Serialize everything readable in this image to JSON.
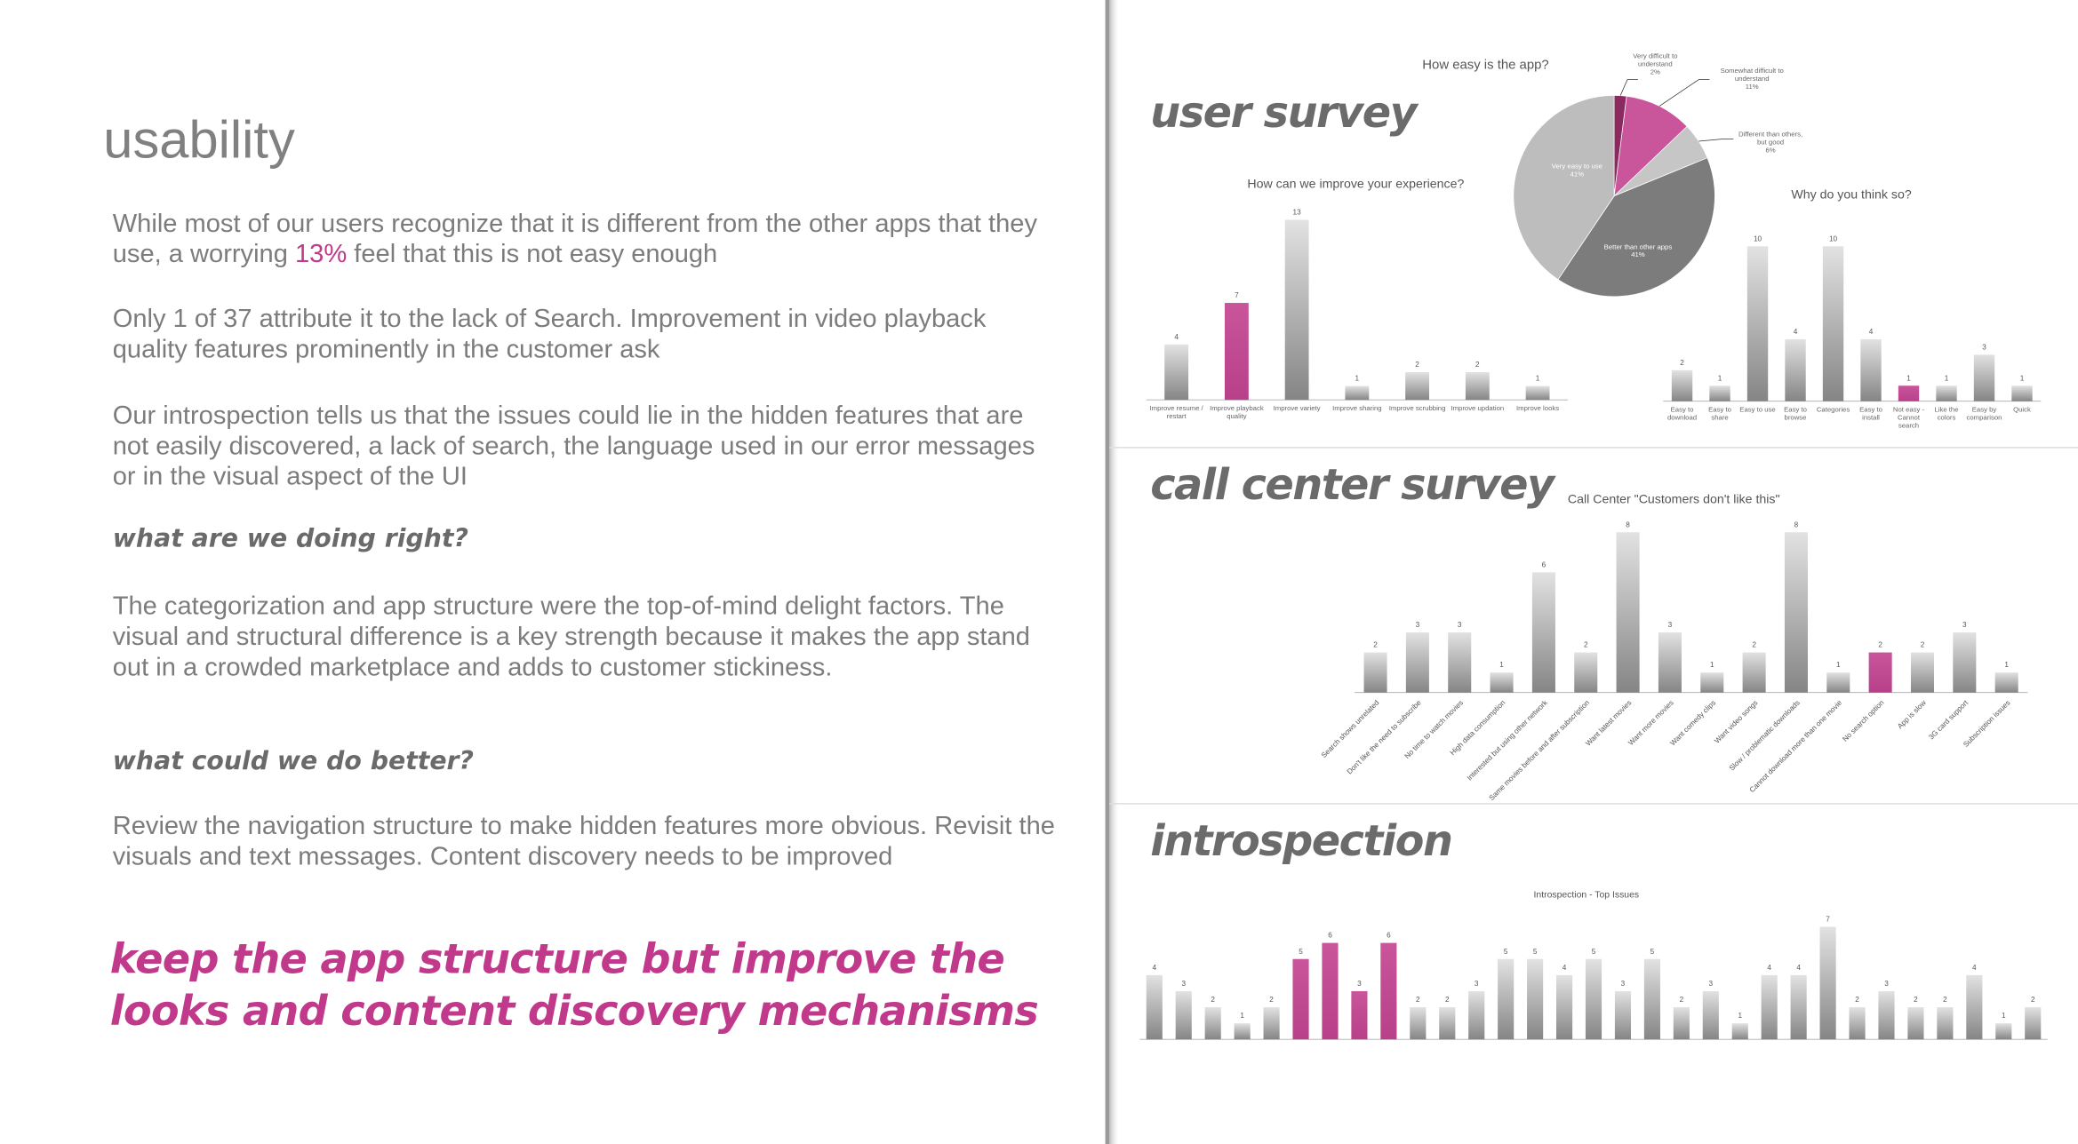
{
  "page": {
    "title": "usability",
    "paragraph1": [
      "While most of our users recognize that it is different from the other apps that they use, a worrying ",
      "13%",
      " feel that this is not easy enough"
    ],
    "paragraph2": "Only 1 of 37 attribute it to the lack of Search. Improvement in video playback quality features prominently in the customer ask",
    "paragraph3": "Our introspection tells us that the issues could lie in the hidden features that are not easily discovered, a lack of search, the language used in our error messages or in the visual aspect of the UI",
    "heading_right": "what are we doing right?",
    "paragraph4": "The categorization and app structure were the top-of-mind delight factors. The visual and structural difference is a key strength because it makes the app stand out in a crowded marketplace and adds to customer stickiness.",
    "heading_better": "what could we do better?",
    "paragraph5": "Review the navigation structure to make hidden features more obvious. Revisit the visuals and text messages. Content discovery needs to be improved",
    "conclusion": "keep the app structure but improve the looks and content discovery mechanisms",
    "section1": "user survey",
    "section2": "call center survey",
    "section3": "introspection"
  },
  "chart_data": [
    {
      "type": "bar",
      "title": "How can we improve your experience?",
      "categories": [
        "Improve resume / restart",
        "Improve playback quality",
        "Improve variety",
        "Improve sharing",
        "Improve scrubbing",
        "Improve updation",
        "Improve looks"
      ],
      "values": [
        4,
        7,
        13,
        1,
        2,
        2,
        1
      ],
      "color": "#999999",
      "highlight_color": "#c9559a",
      "highlight": [
        1
      ]
    },
    {
      "type": "pie",
      "title": "How easy is the app?",
      "labels": [
        "Very difficult to understand",
        "Somewhat difficult to understand",
        "Different than others, but good",
        "Better than other apps",
        "Very easy to use"
      ],
      "values": [
        2,
        11,
        6,
        41,
        41
      ],
      "value_labels": [
        "2%",
        "11%",
        "6%",
        "41%",
        "41%"
      ],
      "colors": [
        "#8a2a5e",
        "#c9559a",
        "#c6c6c6",
        "#7c7c7c",
        "#bdbdbd"
      ]
    },
    {
      "type": "bar",
      "title": "Why do you think so?",
      "categories": [
        "Easy to download",
        "Easy to share",
        "Easy to use",
        "Easy to browse",
        "Categories",
        "Easy to install",
        "Not easy - Cannot search",
        "Like the colors",
        "Easy by comparison",
        "Quick"
      ],
      "values": [
        2,
        1,
        10,
        4,
        10,
        4,
        1,
        1,
        3,
        1
      ],
      "color": "#999999",
      "highlight_color": "#c9559a",
      "highlight": [
        6
      ]
    },
    {
      "type": "bar",
      "title": "Call Center   \"Customers don't like this\"",
      "categories": [
        "Search shows unrelated",
        "Don't like the need to subscribe",
        "No time to watch movies",
        "High data consumption",
        "Interested but using other network",
        "Same movies before and after subscription",
        "Want latest movies",
        "Want more movies",
        "Want comedy clips",
        "Want video songs",
        "Slow / problematic downloads",
        "Cannot download more than one movie",
        "No search option",
        "App is slow",
        "3G card support",
        "Subscription issues"
      ],
      "values": [
        2,
        3,
        3,
        1,
        6,
        2,
        8,
        3,
        1,
        2,
        8,
        1,
        2,
        2,
        3,
        1
      ],
      "color": "#999999",
      "highlight_color": "#c9559a",
      "highlight": [
        12
      ],
      "rotated_labels": true
    },
    {
      "type": "bar",
      "title": "Introspection - Top Issues",
      "categories": [
        null,
        null,
        null,
        null,
        null,
        null,
        null,
        null,
        null,
        null,
        null,
        null,
        null,
        null,
        null,
        null,
        null,
        null,
        null,
        null,
        null,
        null,
        null,
        null,
        null,
        null,
        null,
        null,
        null,
        null,
        null
      ],
      "values": [
        4,
        3,
        2,
        1,
        2,
        5,
        6,
        3,
        6,
        2,
        2,
        3,
        5,
        5,
        4,
        5,
        3,
        5,
        2,
        3,
        1,
        4,
        4,
        7,
        2,
        3,
        2,
        2,
        4,
        1,
        2
      ],
      "color": "#999999",
      "highlight_color": "#c9559a",
      "highlight": [
        5,
        6,
        7,
        8
      ]
    }
  ]
}
